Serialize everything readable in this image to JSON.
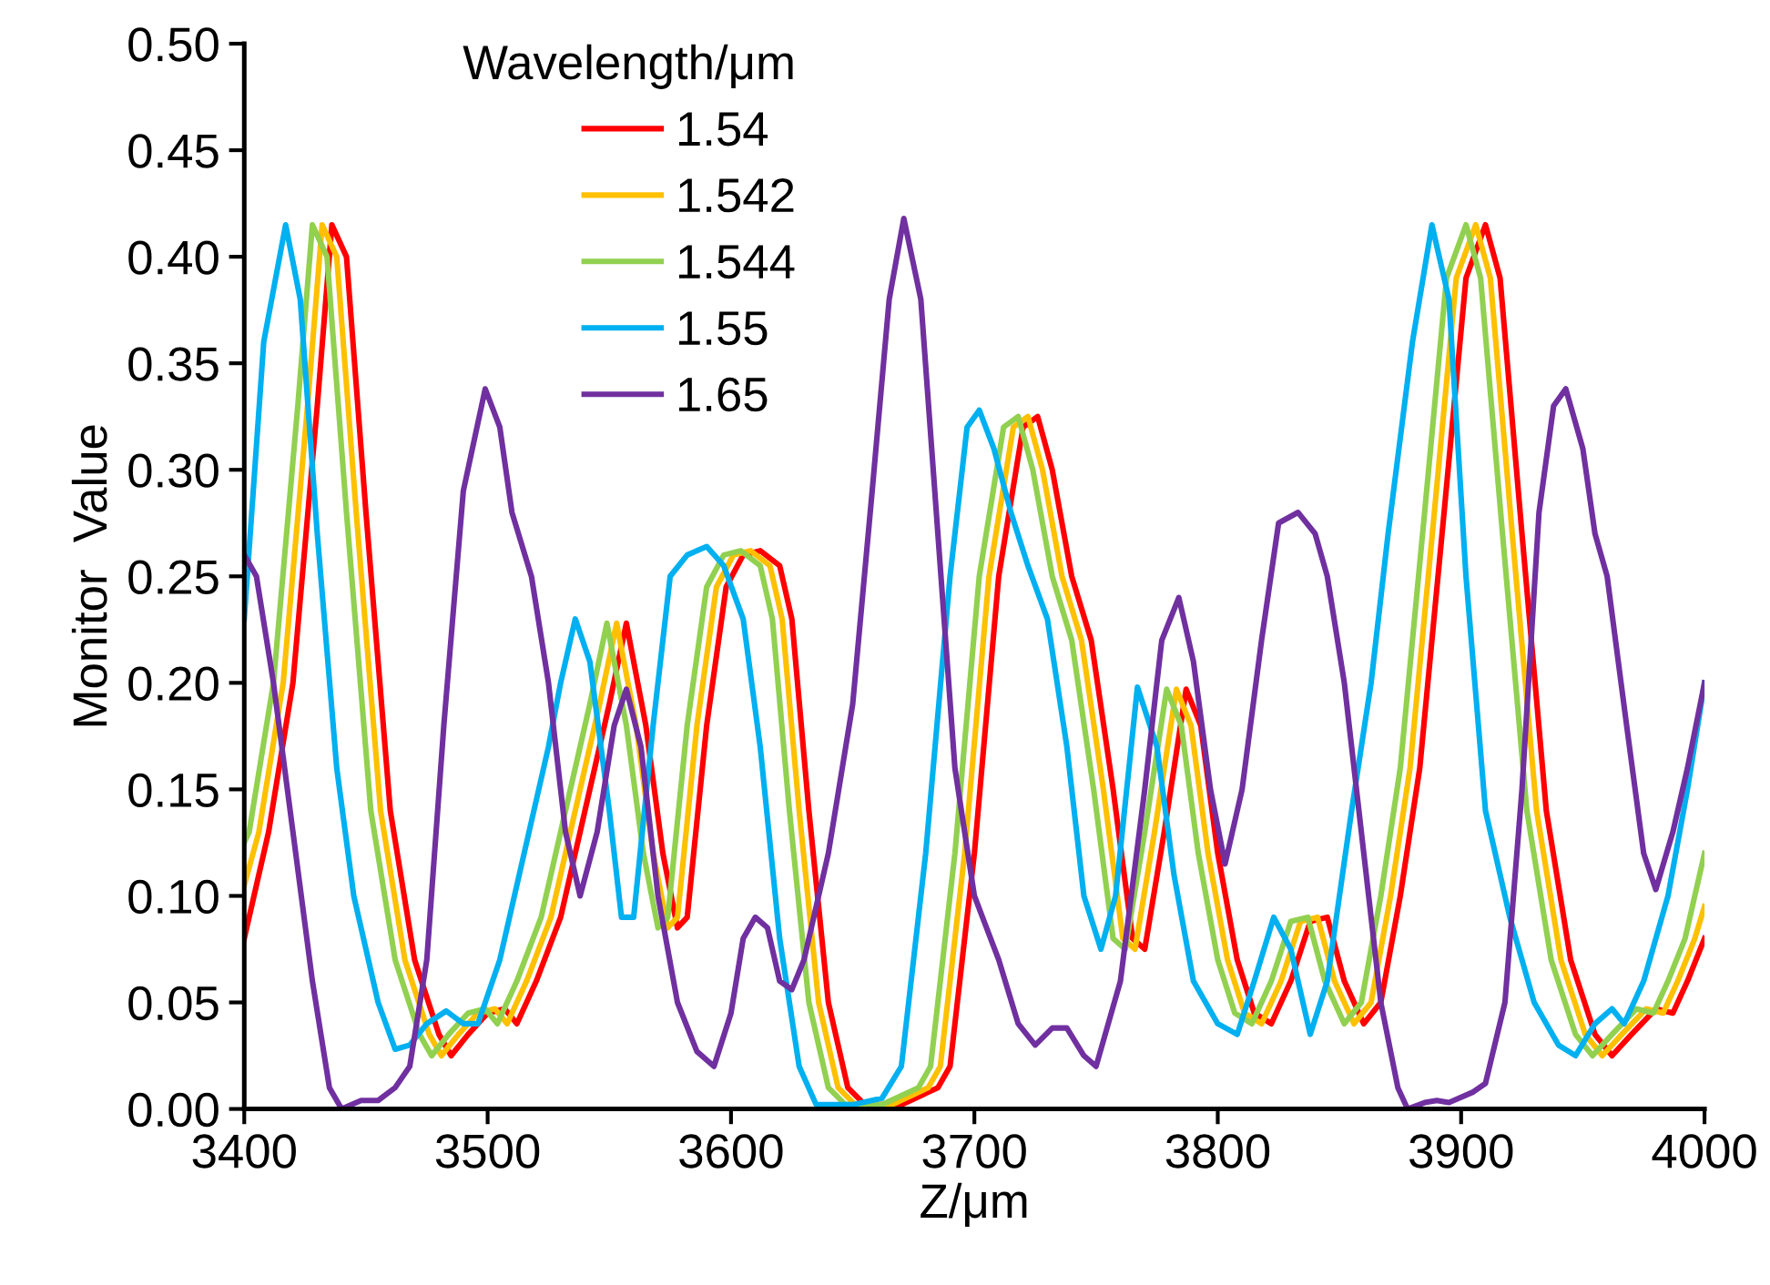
{
  "chart_data": {
    "type": "line",
    "xlabel": "Z/μm",
    "ylabel": "Monitor  Value",
    "legend_title": "Wavelength/μm",
    "legend": "top left",
    "grid": false,
    "marker": "none",
    "line_style": "solid",
    "xlim": [
      3400,
      4000
    ],
    "xticks": [
      3400,
      3500,
      3600,
      3700,
      3800,
      3900,
      4000
    ],
    "ylim": [
      0,
      0.5
    ],
    "yticks": [
      {
        "value": 0,
        "label": "0.00"
      },
      {
        "value": 0.05,
        "label": "0.05"
      },
      {
        "value": 0.1,
        "label": "0.10"
      },
      {
        "value": 0.15,
        "label": "0.15"
      },
      {
        "value": 0.2,
        "label": "0.20"
      },
      {
        "value": 0.25,
        "label": "0.25"
      },
      {
        "value": 0.3,
        "label": "0.30"
      },
      {
        "value": 0.35,
        "label": "0.35"
      },
      {
        "value": 0.4,
        "label": "0.40"
      },
      {
        "value": 0.45,
        "label": "0.45"
      },
      {
        "value": 0.5,
        "label": "0.50"
      }
    ],
    "series": [
      {
        "name": "1.54",
        "color": "#ff0000",
        "x": [
          3400,
          3410,
          3420,
          3430,
          3436,
          3442,
          3450,
          3460,
          3470,
          3480,
          3485,
          3492,
          3500,
          3507,
          3512,
          3520,
          3530,
          3540,
          3550,
          3557,
          3565,
          3572,
          3578,
          3582,
          3590,
          3598,
          3605,
          3612,
          3620,
          3625,
          3632,
          3640,
          3648,
          3655,
          3670,
          3685,
          3690,
          3700,
          3710,
          3720,
          3726,
          3732,
          3740,
          3748,
          3757,
          3765,
          3770,
          3778,
          3787,
          3793,
          3800,
          3808,
          3815,
          3822,
          3830,
          3838,
          3845,
          3852,
          3860,
          3867,
          3875,
          3883,
          3893,
          3902,
          3910,
          3916,
          3925,
          3935,
          3945,
          3955,
          3962,
          3970,
          3980,
          3987,
          3993,
          4000
        ],
        "values": [
          0.08,
          0.13,
          0.2,
          0.33,
          0.415,
          0.4,
          0.28,
          0.14,
          0.07,
          0.035,
          0.025,
          0.035,
          0.045,
          0.047,
          0.04,
          0.06,
          0.09,
          0.14,
          0.19,
          0.228,
          0.18,
          0.12,
          0.085,
          0.09,
          0.18,
          0.245,
          0.26,
          0.262,
          0.255,
          0.23,
          0.14,
          0.05,
          0.01,
          0.002,
          0.002,
          0.01,
          0.02,
          0.12,
          0.25,
          0.32,
          0.325,
          0.3,
          0.25,
          0.22,
          0.15,
          0.08,
          0.075,
          0.13,
          0.197,
          0.18,
          0.12,
          0.07,
          0.045,
          0.04,
          0.06,
          0.088,
          0.09,
          0.06,
          0.04,
          0.05,
          0.1,
          0.16,
          0.28,
          0.39,
          0.415,
          0.39,
          0.27,
          0.14,
          0.07,
          0.035,
          0.025,
          0.035,
          0.047,
          0.045,
          0.06,
          0.08
        ]
      },
      {
        "name": "1.542",
        "color": "#ffc000",
        "x": [
          3400,
          3406,
          3416,
          3426,
          3432,
          3438,
          3446,
          3456,
          3466,
          3476,
          3481,
          3488,
          3496,
          3503,
          3508,
          3516,
          3526,
          3536,
          3546,
          3553,
          3561,
          3568,
          3574,
          3578,
          3586,
          3594,
          3601,
          3608,
          3616,
          3621,
          3628,
          3636,
          3644,
          3651,
          3666,
          3681,
          3686,
          3696,
          3706,
          3716,
          3722,
          3728,
          3736,
          3744,
          3753,
          3761,
          3766,
          3774,
          3783,
          3789,
          3796,
          3804,
          3811,
          3818,
          3826,
          3834,
          3841,
          3848,
          3856,
          3863,
          3871,
          3879,
          3889,
          3898,
          3906,
          3912,
          3921,
          3931,
          3941,
          3951,
          3958,
          3966,
          3976,
          3983,
          3989,
          3996,
          4000
        ],
        "values": [
          0.105,
          0.13,
          0.2,
          0.33,
          0.415,
          0.4,
          0.28,
          0.14,
          0.07,
          0.035,
          0.025,
          0.035,
          0.045,
          0.047,
          0.04,
          0.06,
          0.09,
          0.14,
          0.19,
          0.228,
          0.18,
          0.12,
          0.085,
          0.09,
          0.18,
          0.245,
          0.26,
          0.262,
          0.255,
          0.23,
          0.14,
          0.05,
          0.01,
          0.002,
          0.002,
          0.01,
          0.02,
          0.12,
          0.25,
          0.32,
          0.325,
          0.3,
          0.25,
          0.22,
          0.15,
          0.08,
          0.075,
          0.13,
          0.197,
          0.18,
          0.12,
          0.07,
          0.045,
          0.04,
          0.06,
          0.088,
          0.09,
          0.06,
          0.04,
          0.05,
          0.1,
          0.16,
          0.28,
          0.39,
          0.415,
          0.39,
          0.27,
          0.14,
          0.07,
          0.035,
          0.025,
          0.035,
          0.047,
          0.045,
          0.06,
          0.08,
          0.095
        ]
      },
      {
        "name": "1.544",
        "color": "#92d050",
        "x": [
          3400,
          3402,
          3412,
          3422,
          3428,
          3434,
          3442,
          3452,
          3462,
          3472,
          3477,
          3484,
          3492,
          3499,
          3504,
          3512,
          3522,
          3532,
          3542,
          3549,
          3557,
          3564,
          3570,
          3574,
          3582,
          3590,
          3597,
          3604,
          3612,
          3617,
          3624,
          3632,
          3640,
          3647,
          3662,
          3677,
          3682,
          3692,
          3702,
          3712,
          3718,
          3724,
          3732,
          3740,
          3749,
          3757,
          3762,
          3770,
          3779,
          3785,
          3792,
          3800,
          3807,
          3814,
          3822,
          3830,
          3837,
          3844,
          3852,
          3859,
          3867,
          3875,
          3885,
          3894,
          3902,
          3908,
          3917,
          3927,
          3937,
          3947,
          3954,
          3962,
          3972,
          3979,
          3985,
          3992,
          4000
        ],
        "values": [
          0.125,
          0.13,
          0.2,
          0.33,
          0.415,
          0.4,
          0.28,
          0.14,
          0.07,
          0.035,
          0.025,
          0.035,
          0.045,
          0.047,
          0.04,
          0.06,
          0.09,
          0.14,
          0.19,
          0.228,
          0.18,
          0.12,
          0.085,
          0.09,
          0.18,
          0.245,
          0.26,
          0.262,
          0.255,
          0.23,
          0.14,
          0.05,
          0.01,
          0.002,
          0.002,
          0.01,
          0.02,
          0.12,
          0.25,
          0.32,
          0.325,
          0.3,
          0.25,
          0.22,
          0.15,
          0.08,
          0.075,
          0.13,
          0.197,
          0.18,
          0.12,
          0.07,
          0.045,
          0.04,
          0.06,
          0.088,
          0.09,
          0.06,
          0.04,
          0.05,
          0.1,
          0.16,
          0.28,
          0.39,
          0.415,
          0.39,
          0.27,
          0.14,
          0.07,
          0.035,
          0.025,
          0.035,
          0.047,
          0.045,
          0.06,
          0.08,
          0.12
        ]
      },
      {
        "name": "1.55",
        "color": "#00b0f0",
        "x": [
          3400,
          3408,
          3417,
          3423,
          3430,
          3438,
          3445,
          3455,
          3462,
          3468,
          3475,
          3483,
          3490,
          3496,
          3505,
          3515,
          3525,
          3530,
          3536,
          3542,
          3550,
          3555,
          3560,
          3568,
          3575,
          3582,
          3590,
          3597,
          3605,
          3612,
          3620,
          3628,
          3635,
          3650,
          3662,
          3670,
          3680,
          3690,
          3697,
          3702,
          3708,
          3715,
          3722,
          3730,
          3738,
          3745,
          3752,
          3758,
          3767,
          3775,
          3782,
          3790,
          3800,
          3808,
          3815,
          3823,
          3830,
          3838,
          3845,
          3855,
          3863,
          3870,
          3880,
          3888,
          3895,
          3902,
          3910,
          3920,
          3930,
          3940,
          3947,
          3955,
          3962,
          3967,
          3975,
          3985,
          3993,
          4000
        ],
        "values": [
          0.23,
          0.36,
          0.415,
          0.38,
          0.27,
          0.16,
          0.1,
          0.05,
          0.028,
          0.03,
          0.04,
          0.046,
          0.04,
          0.04,
          0.07,
          0.12,
          0.17,
          0.2,
          0.23,
          0.21,
          0.14,
          0.09,
          0.09,
          0.18,
          0.25,
          0.26,
          0.264,
          0.255,
          0.23,
          0.17,
          0.08,
          0.02,
          0.002,
          0.002,
          0.005,
          0.02,
          0.12,
          0.25,
          0.32,
          0.328,
          0.31,
          0.28,
          0.255,
          0.23,
          0.17,
          0.1,
          0.075,
          0.1,
          0.198,
          0.17,
          0.11,
          0.06,
          0.04,
          0.035,
          0.06,
          0.09,
          0.075,
          0.035,
          0.06,
          0.14,
          0.2,
          0.27,
          0.36,
          0.415,
          0.38,
          0.25,
          0.14,
          0.09,
          0.05,
          0.03,
          0.025,
          0.04,
          0.047,
          0.04,
          0.06,
          0.1,
          0.15,
          0.2
        ]
      },
      {
        "name": "1.65",
        "color": "#7030a0",
        "x": [
          3400,
          3405,
          3412,
          3420,
          3428,
          3435,
          3440,
          3448,
          3455,
          3462,
          3468,
          3475,
          3482,
          3490,
          3499,
          3505,
          3510,
          3518,
          3525,
          3532,
          3538,
          3545,
          3552,
          3557,
          3563,
          3570,
          3578,
          3586,
          3593,
          3600,
          3605,
          3610,
          3615,
          3620,
          3625,
          3630,
          3640,
          3650,
          3658,
          3665,
          3671,
          3678,
          3685,
          3692,
          3700,
          3710,
          3718,
          3725,
          3732,
          3738,
          3745,
          3750,
          3760,
          3770,
          3777,
          3784,
          3790,
          3797,
          3803,
          3810,
          3818,
          3825,
          3833,
          3840,
          3845,
          3852,
          3860,
          3867,
          3874,
          3878,
          3885,
          3890,
          3895,
          3905,
          3910,
          3918,
          3925,
          3932,
          3938,
          3943,
          3950,
          3955,
          3960,
          3968,
          3975,
          3980,
          3987,
          3993,
          4000
        ],
        "values": [
          0.26,
          0.25,
          0.2,
          0.13,
          0.06,
          0.01,
          0.0,
          0.004,
          0.004,
          0.01,
          0.02,
          0.07,
          0.18,
          0.29,
          0.338,
          0.32,
          0.28,
          0.25,
          0.2,
          0.13,
          0.1,
          0.13,
          0.18,
          0.197,
          0.17,
          0.1,
          0.05,
          0.027,
          0.02,
          0.045,
          0.08,
          0.09,
          0.085,
          0.06,
          0.056,
          0.07,
          0.12,
          0.19,
          0.29,
          0.38,
          0.418,
          0.38,
          0.27,
          0.16,
          0.1,
          0.07,
          0.04,
          0.03,
          0.038,
          0.038,
          0.025,
          0.02,
          0.06,
          0.15,
          0.22,
          0.24,
          0.21,
          0.15,
          0.115,
          0.15,
          0.22,
          0.275,
          0.28,
          0.27,
          0.25,
          0.2,
          0.12,
          0.05,
          0.01,
          0.0,
          0.003,
          0.004,
          0.003,
          0.008,
          0.012,
          0.05,
          0.15,
          0.28,
          0.33,
          0.338,
          0.31,
          0.27,
          0.25,
          0.18,
          0.12,
          0.103,
          0.13,
          0.16,
          0.2
        ]
      }
    ]
  }
}
